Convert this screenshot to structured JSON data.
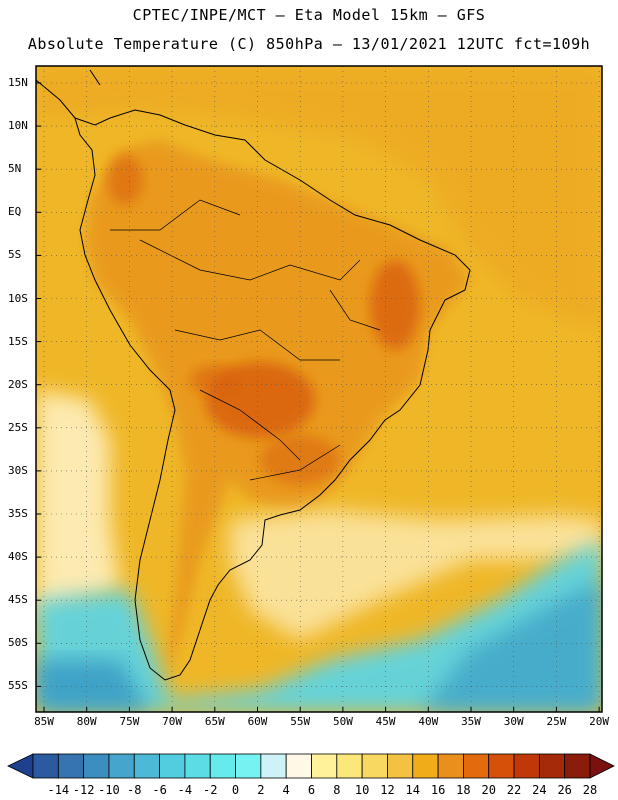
{
  "header": {
    "line1": "CPTEC/INPE/MCT —  Eta Model 15km — GFS",
    "line2": "Absolute Temperature (C) 850hPa — 13/01/2021 12UTC fct=109h"
  },
  "axes": {
    "lat_labels": [
      "15N",
      "10N",
      "5N",
      "EQ",
      "5S",
      "10S",
      "15S",
      "20S",
      "25S",
      "30S",
      "35S",
      "40S",
      "45S",
      "50S",
      "55S"
    ],
    "lon_labels": [
      "85W",
      "80W",
      "75W",
      "70W",
      "65W",
      "60W",
      "55W",
      "50W",
      "45W",
      "40W",
      "35W",
      "30W",
      "25W",
      "20W"
    ]
  },
  "colorbar": {
    "labels": [
      "-14",
      "-12",
      "-10",
      "-8",
      "-6",
      "-4",
      "-2",
      "0",
      "2",
      "4",
      "6",
      "8",
      "10",
      "12",
      "14",
      "16",
      "18",
      "20",
      "22",
      "24",
      "26",
      "28"
    ],
    "colors": [
      "#1f3f8f",
      "#2b5aa0",
      "#3574b0",
      "#3d8ec0",
      "#45a5cc",
      "#4cbad6",
      "#52cddf",
      "#5cdde6",
      "#66eaec",
      "#76f2f2",
      "#cdf3f8",
      "#fff8e6",
      "#fff29a",
      "#fce77a",
      "#f8d860",
      "#f3c243",
      "#f0ac19",
      "#ea8e1c",
      "#e36a0d",
      "#d6500a",
      "#c0380a",
      "#a52a0a",
      "#8a1c0c",
      "#7a1010"
    ]
  },
  "map": {
    "background_color": "#efb728",
    "land_warm_color": "#e8961c",
    "land_hot_color": "#d9600d",
    "cool_cream_color": "#fff3c8",
    "cool_cyan_color": "#5ed4e2",
    "cold_blue_color": "#2f8ec0"
  }
}
